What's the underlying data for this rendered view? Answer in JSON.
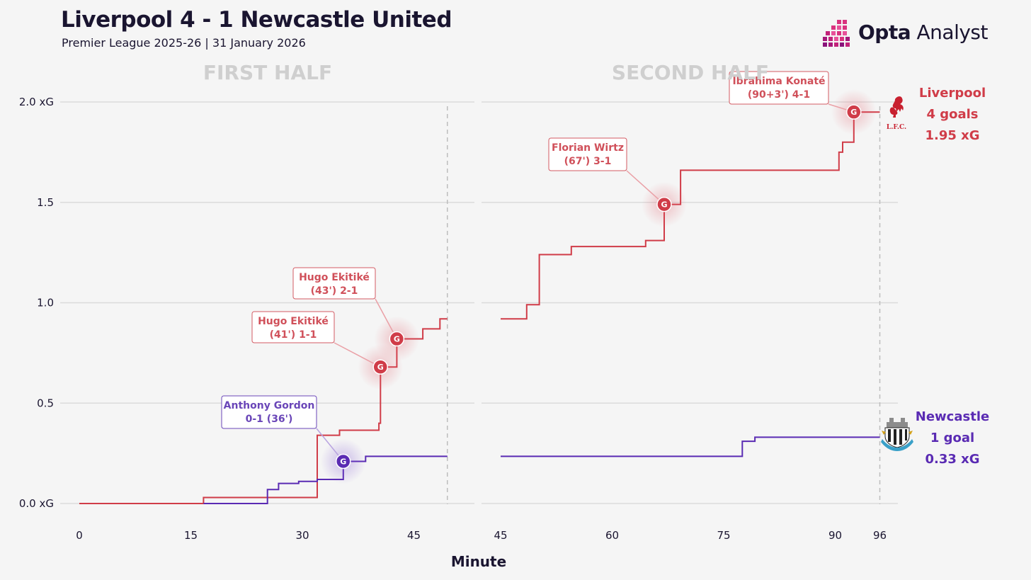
{
  "header": {
    "title": "Liverpool 4 - 1 Newcastle United",
    "subtitle": "Premier League 2025-26 | 31 January 2026"
  },
  "brand": {
    "word_bold": "Opta",
    "word_light": " Analyst",
    "logo_icon": "opta-logo-icon"
  },
  "chart_data": {
    "type": "line",
    "step": true,
    "panels": [
      {
        "title": "FIRST HALF",
        "xlim": [
          0,
          49.5
        ],
        "xticks": [
          0,
          15,
          30,
          45
        ],
        "end_marker": 49.5
      },
      {
        "title": "SECOND HALF",
        "xlim": [
          45,
          96
        ],
        "xticks": [
          45,
          60,
          75,
          90,
          96
        ],
        "end_marker": 96
      }
    ],
    "xlabel": "Minute",
    "ylim": [
      0,
      2.0
    ],
    "yticks": [
      0,
      0.5,
      1.0,
      1.5,
      2.0
    ],
    "ytick_labels": [
      "0.0 xG",
      "0.5",
      "1.0",
      "1.5",
      "2.0 xG"
    ],
    "grid": true,
    "series": [
      {
        "name": "Liverpool",
        "color": "#d03c48",
        "first_half": [
          [
            0,
            0
          ],
          [
            16.7,
            0
          ],
          [
            16.7,
            0.03
          ],
          [
            32,
            0.03
          ],
          [
            32,
            0.34
          ],
          [
            35,
            0.34
          ],
          [
            35,
            0.365
          ],
          [
            40.3,
            0.365
          ],
          [
            40.3,
            0.4
          ],
          [
            40.5,
            0.4
          ],
          [
            40.5,
            0.68
          ],
          [
            42.7,
            0.68
          ],
          [
            42.7,
            0.82
          ],
          [
            46.2,
            0.82
          ],
          [
            46.2,
            0.87
          ],
          [
            48.5,
            0.87
          ],
          [
            48.5,
            0.92
          ],
          [
            49.5,
            0.92
          ]
        ],
        "second_half": [
          [
            45,
            0.92
          ],
          [
            48.5,
            0.92
          ],
          [
            48.5,
            0.99
          ],
          [
            50.2,
            0.99
          ],
          [
            50.2,
            1.24
          ],
          [
            54.5,
            1.24
          ],
          [
            54.5,
            1.28
          ],
          [
            64.5,
            1.28
          ],
          [
            64.5,
            1.31
          ],
          [
            67,
            1.31
          ],
          [
            67,
            1.49
          ],
          [
            69.2,
            1.49
          ],
          [
            69.2,
            1.66
          ],
          [
            90.5,
            1.66
          ],
          [
            90.5,
            1.75
          ],
          [
            91,
            1.75
          ],
          [
            91,
            1.8
          ],
          [
            92.5,
            1.8
          ],
          [
            92.5,
            1.95
          ],
          [
            96,
            1.95
          ]
        ],
        "goals": [
          {
            "half": 1,
            "minute": 41,
            "x": 40.5,
            "xg": 0.68,
            "label": "Hugo Ekitiké",
            "detail": "(41') 1-1"
          },
          {
            "half": 1,
            "minute": 43,
            "x": 42.7,
            "xg": 0.82,
            "label": "Hugo Ekitiké",
            "detail": "(43') 2-1"
          },
          {
            "half": 2,
            "minute": 67,
            "x": 67,
            "xg": 1.49,
            "label": "Florian Wirtz",
            "detail": "(67') 3-1"
          },
          {
            "half": 2,
            "minute": "90+3",
            "x": 92.5,
            "xg": 1.95,
            "label": "Ibrahima Konaté",
            "detail": "(90+3') 4-1"
          }
        ],
        "summary": [
          "Liverpool",
          "4 goals",
          "1.95 xG"
        ]
      },
      {
        "name": "Newcastle",
        "color": "#5a2bb3",
        "first_half": [
          [
            16.7,
            0
          ],
          [
            25.3,
            0
          ],
          [
            25.3,
            0.07
          ],
          [
            26.8,
            0.07
          ],
          [
            26.8,
            0.1
          ],
          [
            29.5,
            0.1
          ],
          [
            29.5,
            0.11
          ],
          [
            32,
            0.11
          ],
          [
            32,
            0.12
          ],
          [
            35.5,
            0.12
          ],
          [
            35.5,
            0.21
          ],
          [
            38.5,
            0.21
          ],
          [
            38.5,
            0.235
          ],
          [
            49.5,
            0.235
          ]
        ],
        "second_half": [
          [
            45,
            0.235
          ],
          [
            77.5,
            0.235
          ],
          [
            77.5,
            0.31
          ],
          [
            79.2,
            0.31
          ],
          [
            79.2,
            0.33
          ],
          [
            96,
            0.33
          ]
        ],
        "goals": [
          {
            "half": 1,
            "minute": 36,
            "x": 35.5,
            "xg": 0.21,
            "label": "Anthony Gordon",
            "detail": "0-1 (36')"
          }
        ],
        "summary": [
          "Newcastle",
          "1 goal",
          "0.33 xG"
        ]
      }
    ],
    "goal_marker_letter": "G"
  }
}
